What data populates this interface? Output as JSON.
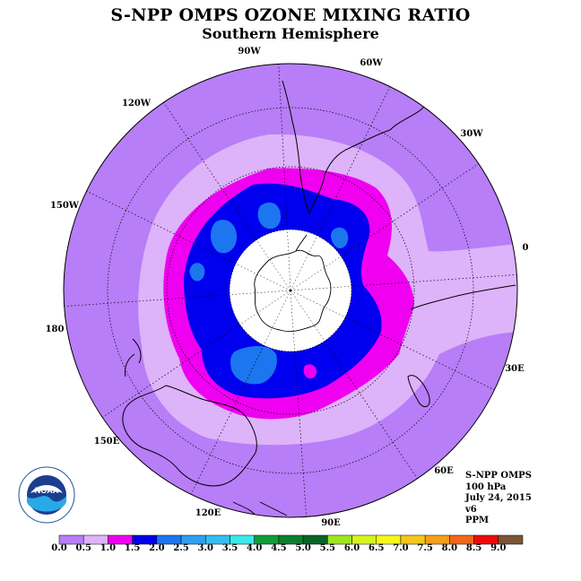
{
  "header": {
    "title": "S-NPP OMPS OZONE MIXING RATIO",
    "subtitle": "Southern Hemisphere"
  },
  "map": {
    "projection": "south polar stereographic",
    "longitude_labels": [
      "90W",
      "60W",
      "30W",
      "0",
      "30E",
      "60E",
      "90E",
      "120E",
      "150E",
      "180",
      "150W",
      "120W"
    ],
    "polar_night_area": "no data (white)",
    "bands_ppm": [
      {
        "range": "0.0-0.5",
        "color": "#b77ef7"
      },
      {
        "range": "0.5-1.0",
        "color": "#ddb3fa"
      },
      {
        "range": "1.0-1.5",
        "color": "#f000f0"
      },
      {
        "range": "1.5-2.0",
        "color": "#0000ee"
      },
      {
        "range": "2.0-2.5",
        "color": "#1c76f0"
      }
    ]
  },
  "info": {
    "instrument": "S-NPP OMPS",
    "level": "100 hPa",
    "date": "July 24, 2015",
    "version": "v6",
    "units": "PPM"
  },
  "colorbar": {
    "labels": [
      "0.0",
      "0.5",
      "1.0",
      "1.5",
      "2.0",
      "2.5",
      "3.0",
      "3.5",
      "4.0",
      "4.5",
      "5.0",
      "5.5",
      "6.0",
      "6.5",
      "7.0",
      "7.5",
      "8.0",
      "8.5",
      "9.0"
    ],
    "colors": [
      "#b77ef7",
      "#ddb3fa",
      "#f000f0",
      "#0000ee",
      "#1c76f0",
      "#2ea0ef",
      "#36bdf0",
      "#3ae8e8",
      "#0f9c3a",
      "#0a7f30",
      "#096428",
      "#9fe51e",
      "#d5f51c",
      "#f7f71a",
      "#f5c51a",
      "#f59f1a",
      "#f0681a",
      "#ee0a0a",
      "#7a5536"
    ]
  },
  "logo": {
    "name": "NOAA",
    "ring_text": "NATIONAL OCEANIC AND ATMOSPHERIC ADMINISTRATION · U.S. DEPARTMENT OF COMMERCE"
  }
}
